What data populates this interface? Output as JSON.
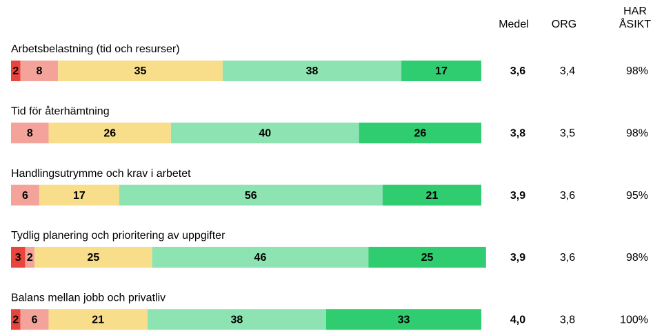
{
  "chart_data": {
    "type": "bar",
    "orientation": "horizontal",
    "stacked": true,
    "categories": [
      "Arbetsbelastning (tid och resurser)",
      "Tid för återhämtning",
      "Handlingsutrymme och krav i arbetet",
      "Tydlig planering och prioritering av uppgifter",
      "Balans mellan jobb och privatliv"
    ],
    "xlim": [
      0,
      100
    ],
    "series": [
      {
        "color": "#e8453c",
        "values": [
          2,
          null,
          null,
          3,
          2
        ]
      },
      {
        "color": "#f4a39b",
        "values": [
          8,
          8,
          6,
          2,
          6
        ]
      },
      {
        "color": "#f8de8a",
        "values": [
          35,
          26,
          17,
          25,
          21
        ]
      },
      {
        "color": "#8de3b2",
        "values": [
          38,
          40,
          56,
          46,
          38
        ]
      },
      {
        "color": "#2fcc70",
        "values": [
          17,
          26,
          21,
          25,
          33
        ]
      }
    ],
    "columns": [
      {
        "header": [
          "Medel"
        ],
        "bold": true,
        "values": [
          3.6,
          3.8,
          3.9,
          3.9,
          4.0
        ],
        "value_labels": [
          "3,6",
          "3,8",
          "3,9",
          "3,9",
          "4,0"
        ]
      },
      {
        "header": [
          "ORG"
        ],
        "bold": false,
        "values": [
          3.4,
          3.5,
          3.6,
          3.6,
          3.8
        ],
        "value_labels": [
          "3,4",
          "3,5",
          "3,6",
          "3,6",
          "3,8"
        ]
      },
      {
        "header": [
          "HAR",
          "ÅSIKT"
        ],
        "bold": false,
        "values": [
          98,
          98,
          95,
          98,
          100
        ],
        "value_labels": [
          "98%",
          "98%",
          "95%",
          "98%",
          "100%"
        ]
      }
    ]
  }
}
